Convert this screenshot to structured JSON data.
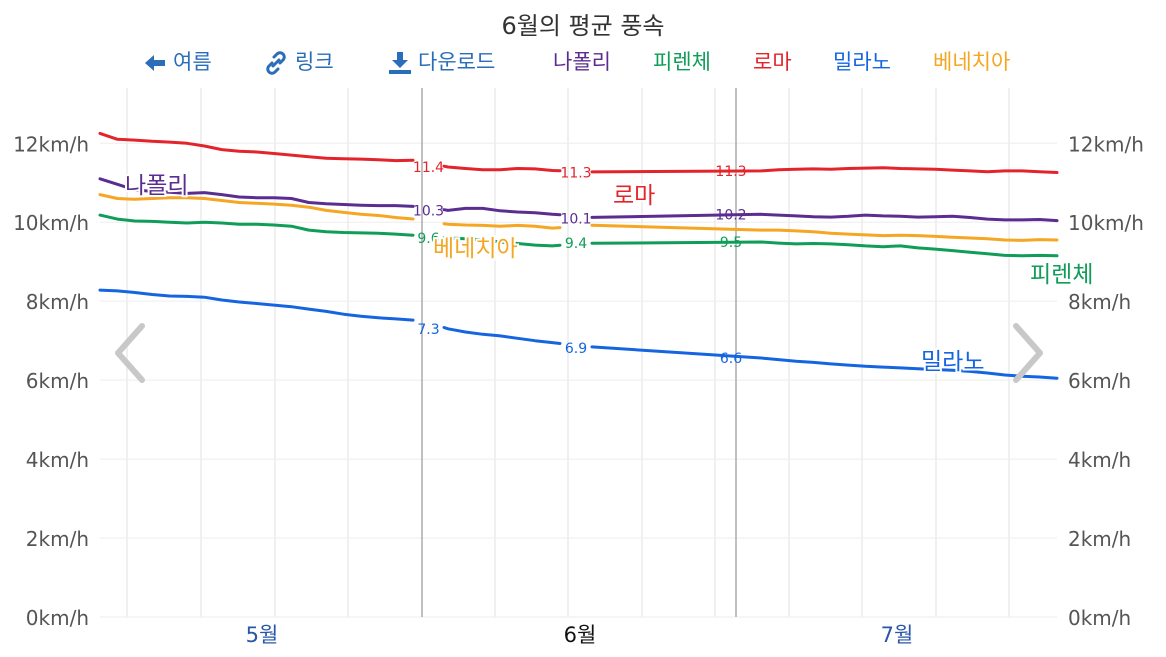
{
  "title": "6월의 평균 풍속",
  "toolbar": {
    "back_label": "여름",
    "link_label": "링크",
    "download_label": "다운로드"
  },
  "colors": {
    "naples": "#5b2d90",
    "florence": "#0f9d58",
    "rome": "#e3242b",
    "milan": "#1565e0",
    "venice": "#f5a623",
    "nav": "#2a6db8",
    "axis_text": "#555555",
    "grid": "#e6e6e6"
  },
  "chart_data": {
    "type": "line",
    "title": "6월의 평균 풍속",
    "y_unit": "km/h",
    "ylim": [
      0,
      13.4
    ],
    "y_ticks": [
      "0km/h",
      "2km/h",
      "4km/h",
      "6km/h",
      "8km/h",
      "10km/h",
      "12km/h"
    ],
    "y_tick_values": [
      0,
      2,
      4,
      6,
      8,
      10,
      12
    ],
    "x_labels": [
      {
        "label": "5월",
        "current": false
      },
      {
        "label": "6월",
        "current": true
      },
      {
        "label": "7월",
        "current": false
      }
    ],
    "grid": true,
    "legend_position": "top",
    "series": [
      {
        "name": "나폴리",
        "key": "naples",
        "line_label": "나폴리",
        "label_pos": "left",
        "values": [
          11.1,
          10.96,
          10.82,
          10.78,
          10.76,
          10.73,
          10.75,
          10.7,
          10.64,
          10.62,
          10.62,
          10.6,
          10.5,
          10.47,
          10.45,
          10.43,
          10.42,
          10.42,
          10.4,
          10.38,
          10.3,
          10.35,
          10.35,
          10.29,
          10.26,
          10.24,
          10.2,
          10.18,
          10.13,
          10.1,
          10.12,
          10.09,
          10.07,
          10.06,
          10.12,
          10.14,
          10.1,
          10.11,
          10.2,
          10.18,
          10.16,
          10.14,
          10.13,
          10.15,
          10.18,
          10.16,
          10.15,
          10.13,
          10.14,
          10.15,
          10.12,
          10.08,
          10.06,
          10.06,
          10.07,
          10.04
        ]
      },
      {
        "name": "피렌체",
        "key": "florence",
        "line_label": "피렌체",
        "label_pos": "right",
        "values": [
          10.18,
          10.08,
          10.03,
          10.02,
          10.0,
          9.98,
          10.0,
          9.98,
          9.95,
          9.95,
          9.93,
          9.9,
          9.8,
          9.76,
          9.74,
          9.73,
          9.72,
          9.7,
          9.67,
          9.63,
          9.6,
          9.58,
          9.55,
          9.5,
          9.46,
          9.42,
          9.4,
          9.44,
          9.46,
          9.48,
          9.47,
          9.5,
          9.52,
          9.55,
          9.52,
          9.5,
          9.5,
          9.48,
          9.5,
          9.47,
          9.45,
          9.46,
          9.45,
          9.43,
          9.4,
          9.38,
          9.4,
          9.35,
          9.32,
          9.28,
          9.24,
          9.2,
          9.16,
          9.15,
          9.16,
          9.15
        ]
      },
      {
        "name": "로마",
        "key": "rome",
        "line_label": "로마",
        "label_pos": "mid",
        "values": [
          12.25,
          12.1,
          12.08,
          12.05,
          12.03,
          12.0,
          11.93,
          11.84,
          11.8,
          11.78,
          11.74,
          11.7,
          11.66,
          11.62,
          11.61,
          11.6,
          11.58,
          11.56,
          11.57,
          11.48,
          11.4,
          11.36,
          11.33,
          11.33,
          11.36,
          11.35,
          11.31,
          11.3,
          11.28,
          11.26,
          11.26,
          11.25,
          11.27,
          11.28,
          11.3,
          11.3,
          11.32,
          11.34,
          11.3,
          11.33,
          11.34,
          11.35,
          11.34,
          11.36,
          11.37,
          11.38,
          11.36,
          11.35,
          11.34,
          11.32,
          11.3,
          11.28,
          11.3,
          11.3,
          11.28,
          11.26
        ]
      },
      {
        "name": "밀라노",
        "key": "milan",
        "line_label": "밀라노",
        "label_pos": "right",
        "values": [
          8.28,
          8.26,
          8.22,
          8.17,
          8.13,
          8.12,
          8.1,
          8.03,
          7.98,
          7.94,
          7.9,
          7.86,
          7.8,
          7.74,
          7.67,
          7.62,
          7.58,
          7.55,
          7.52,
          7.45,
          7.3,
          7.22,
          7.16,
          7.12,
          7.06,
          7.0,
          6.95,
          6.9,
          6.85,
          6.82,
          6.8,
          6.8,
          6.79,
          6.77,
          6.74,
          6.7,
          6.64,
          6.6,
          6.56,
          6.52,
          6.48,
          6.45,
          6.41,
          6.38,
          6.35,
          6.33,
          6.31,
          6.29,
          6.27,
          6.25,
          6.22,
          6.18,
          6.13,
          6.1,
          6.08,
          6.05
        ]
      },
      {
        "name": "베네치아",
        "key": "venice",
        "line_label": "베네치아",
        "label_pos": "mid",
        "values": [
          10.7,
          10.6,
          10.58,
          10.6,
          10.62,
          10.62,
          10.6,
          10.55,
          10.5,
          10.48,
          10.46,
          10.43,
          10.38,
          10.3,
          10.25,
          10.2,
          10.17,
          10.12,
          10.08,
          10.0,
          9.95,
          9.93,
          9.92,
          9.9,
          9.92,
          9.9,
          9.85,
          9.88,
          9.92,
          9.94,
          9.95,
          9.96,
          9.94,
          9.92,
          9.9,
          9.88,
          9.85,
          9.82,
          9.8,
          9.8,
          9.78,
          9.76,
          9.72,
          9.7,
          9.68,
          9.66,
          9.67,
          9.66,
          9.64,
          9.62,
          9.6,
          9.58,
          9.55,
          9.54,
          9.56,
          9.55
        ]
      }
    ],
    "point_labels": [
      {
        "series": "rome",
        "labels": [
          "11.4",
          "11.3",
          "11.3"
        ]
      },
      {
        "series": "naples",
        "labels": [
          "10.3",
          "10.1",
          "10.2"
        ]
      },
      {
        "series": "florence",
        "labels": [
          "9.6",
          "9.4",
          "9.5"
        ]
      },
      {
        "series": "milan",
        "labels": [
          "7.3",
          "6.9",
          "6.6"
        ]
      }
    ]
  }
}
